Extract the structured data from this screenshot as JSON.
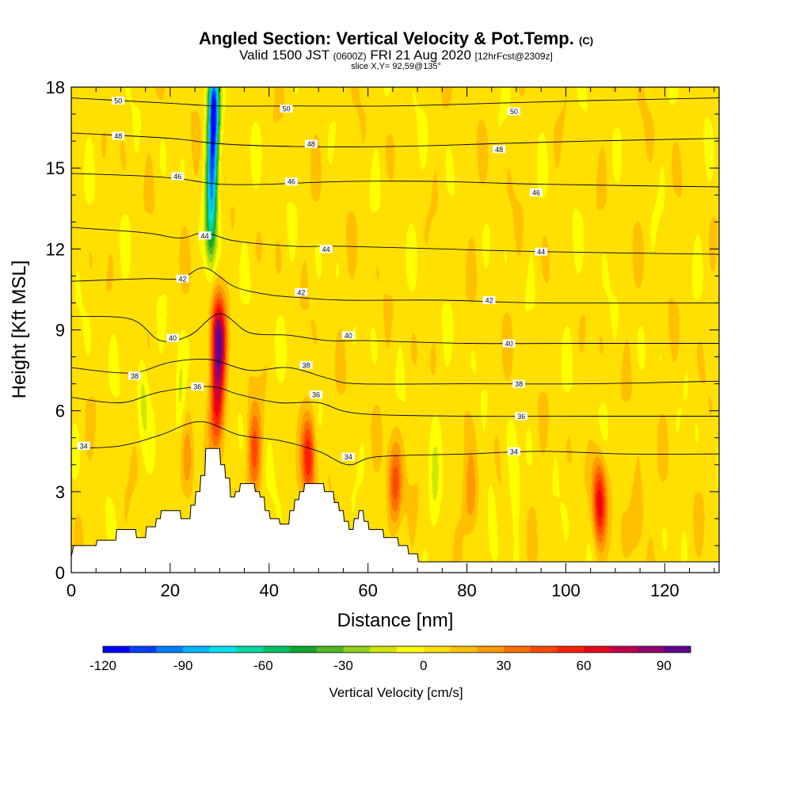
{
  "header": {
    "title_main": "Angled Section: Vertical Velocity & Pot.Temp.",
    "title_tag": "(C)",
    "subtitle_part1": "Valid 1500 JST",
    "subtitle_part2": "(0600Z)",
    "subtitle_part3": "FRI 21 Aug 2020",
    "subtitle_part4": "[12hrFcst@2309z]",
    "slice": "slice X,Y= 92,59@135°"
  },
  "chart_data": {
    "type": "heatmap",
    "xlabel": "Distance [nm]",
    "ylabel": "Height [Kft MSL]",
    "xlim": [
      0,
      131
    ],
    "ylim": [
      0,
      18
    ],
    "x_ticks": [
      0,
      20,
      40,
      60,
      80,
      100,
      120
    ],
    "y_ticks": [
      0,
      3,
      6,
      9,
      12,
      15,
      18
    ],
    "colorbar": {
      "title": "Vertical Velocity [cm/s]",
      "min": -120,
      "max": 100,
      "step": 10,
      "tick_values": [
        -120,
        -90,
        -60,
        -30,
        0,
        30,
        60,
        90
      ],
      "colors": [
        "#0000ff",
        "#0040ff",
        "#0080ff",
        "#00b4ff",
        "#00e0f0",
        "#00d8a0",
        "#00c060",
        "#10a830",
        "#50b820",
        "#90d020",
        "#d0e600",
        "#ffff00",
        "#ffe000",
        "#ffc000",
        "#ff9a00",
        "#ff7000",
        "#ff4800",
        "#ff2000",
        "#e8001a",
        "#c0004a",
        "#900070",
        "#600090"
      ]
    },
    "background_value": 5,
    "updraft_cores": [
      {
        "x": 29.8,
        "z": 8.6,
        "peak": 85
      },
      {
        "x": 29.5,
        "z": 6.2,
        "peak": 55
      },
      {
        "x": 48.0,
        "z": 4.3,
        "peak": 52
      },
      {
        "x": 65.5,
        "z": 3.2,
        "peak": 42
      },
      {
        "x": 37.0,
        "z": 4.5,
        "peak": 38
      },
      {
        "x": 80.8,
        "z": 2.8,
        "peak": 28
      },
      {
        "x": 106.8,
        "z": 2.6,
        "peak": 60
      },
      {
        "x": 114.5,
        "z": 2.4,
        "peak": 20
      },
      {
        "x": 23.5,
        "z": 4.0,
        "peak": 22
      }
    ],
    "downdraft_cores": [
      {
        "x": 28.8,
        "z": 17.2,
        "peak": -115
      },
      {
        "x": 28.5,
        "z": 15.0,
        "peak": -75
      },
      {
        "x": 28.2,
        "z": 13.0,
        "peak": -55
      },
      {
        "x": 22.0,
        "z": 6.6,
        "peak": -22
      },
      {
        "x": 14.5,
        "z": 6.5,
        "peak": -18
      },
      {
        "x": 73.5,
        "z": 3.0,
        "peak": -15
      },
      {
        "x": 85.0,
        "z": 2.5,
        "peak": -12
      },
      {
        "x": 89.5,
        "z": 3.2,
        "peak": -10
      }
    ],
    "terrain_kft": [
      [
        0,
        0.6
      ],
      [
        0.5,
        1.0
      ],
      [
        5,
        1.0
      ],
      [
        5.2,
        1.2
      ],
      [
        9,
        1.2
      ],
      [
        9.2,
        1.6
      ],
      [
        13,
        1.6
      ],
      [
        13.2,
        1.3
      ],
      [
        15,
        1.3
      ],
      [
        15.2,
        1.7
      ],
      [
        17,
        1.7
      ],
      [
        17.2,
        2.0
      ],
      [
        18,
        2.0
      ],
      [
        18.2,
        2.3
      ],
      [
        22,
        2.3
      ],
      [
        22.2,
        2.0
      ],
      [
        24,
        2.0
      ],
      [
        24.2,
        2.5
      ],
      [
        25,
        2.5
      ],
      [
        25.2,
        3.0
      ],
      [
        26,
        3.0
      ],
      [
        26.2,
        3.6
      ],
      [
        27,
        3.6
      ],
      [
        27.2,
        4.6
      ],
      [
        30,
        4.6
      ],
      [
        30.2,
        4.0
      ],
      [
        31,
        4.0
      ],
      [
        31.2,
        3.5
      ],
      [
        32,
        3.5
      ],
      [
        32.2,
        2.8
      ],
      [
        33,
        2.8
      ],
      [
        33.2,
        3.0
      ],
      [
        34,
        3.0
      ],
      [
        34.2,
        3.3
      ],
      [
        37,
        3.3
      ],
      [
        37.2,
        3.0
      ],
      [
        38,
        3.0
      ],
      [
        38.2,
        2.8
      ],
      [
        39,
        2.8
      ],
      [
        39.2,
        2.3
      ],
      [
        40,
        2.3
      ],
      [
        40.2,
        2.0
      ],
      [
        42,
        2.0
      ],
      [
        42.2,
        1.8
      ],
      [
        44,
        1.8
      ],
      [
        44.2,
        2.3
      ],
      [
        45,
        2.3
      ],
      [
        45.2,
        2.7
      ],
      [
        46,
        2.7
      ],
      [
        46.2,
        3.0
      ],
      [
        47,
        3.0
      ],
      [
        47.2,
        3.3
      ],
      [
        51,
        3.3
      ],
      [
        51.2,
        3.0
      ],
      [
        53,
        3.0
      ],
      [
        53.2,
        2.6
      ],
      [
        54,
        2.6
      ],
      [
        54.2,
        2.3
      ],
      [
        55,
        2.3
      ],
      [
        55.2,
        1.9
      ],
      [
        56,
        1.9
      ],
      [
        56.2,
        1.6
      ],
      [
        57,
        1.6
      ],
      [
        57.2,
        2.0
      ],
      [
        58,
        2.0
      ],
      [
        58.2,
        2.3
      ],
      [
        59,
        2.3
      ],
      [
        59.2,
        1.9
      ],
      [
        60,
        1.9
      ],
      [
        60.2,
        1.6
      ],
      [
        63,
        1.6
      ],
      [
        63.2,
        1.3
      ],
      [
        66,
        1.3
      ],
      [
        66.2,
        1.0
      ],
      [
        68,
        1.0
      ],
      [
        68.2,
        0.7
      ],
      [
        70,
        0.7
      ],
      [
        70.2,
        0.4
      ],
      [
        131,
        0.4
      ]
    ],
    "theta_isentropes": [
      {
        "label": "50",
        "points": [
          [
            0,
            17.6
          ],
          [
            20,
            17.4
          ],
          [
            30,
            17.3
          ],
          [
            45,
            17.3
          ],
          [
            65,
            17.3
          ],
          [
            85,
            17.4
          ],
          [
            105,
            17.5
          ],
          [
            131,
            17.6
          ]
        ]
      },
      {
        "label": "48",
        "points": [
          [
            0,
            16.3
          ],
          [
            20,
            16.1
          ],
          [
            30,
            15.9
          ],
          [
            45,
            15.8
          ],
          [
            65,
            15.8
          ],
          [
            85,
            15.9
          ],
          [
            105,
            16.0
          ],
          [
            131,
            16.1
          ]
        ]
      },
      {
        "label": "46",
        "points": [
          [
            0,
            14.8
          ],
          [
            15,
            14.7
          ],
          [
            22,
            14.6
          ],
          [
            30,
            14.4
          ],
          [
            40,
            14.4
          ],
          [
            55,
            14.5
          ],
          [
            75,
            14.5
          ],
          [
            95,
            14.4
          ],
          [
            131,
            14.3
          ]
        ]
      },
      {
        "label": "44",
        "points": [
          [
            0,
            12.8
          ],
          [
            15,
            12.6
          ],
          [
            22,
            12.4
          ],
          [
            27,
            12.6
          ],
          [
            33,
            12.3
          ],
          [
            45,
            12.1
          ],
          [
            55,
            12.1
          ],
          [
            75,
            12.0
          ],
          [
            95,
            11.9
          ],
          [
            131,
            11.8
          ]
        ]
      },
      {
        "label": "42",
        "points": [
          [
            0,
            10.8
          ],
          [
            15,
            10.9
          ],
          [
            22,
            10.9
          ],
          [
            27,
            11.3
          ],
          [
            33,
            10.6
          ],
          [
            40,
            10.3
          ],
          [
            46,
            10.2
          ],
          [
            55,
            10.1
          ],
          [
            75,
            10.1
          ],
          [
            95,
            10.0
          ],
          [
            131,
            10.0
          ]
        ]
      },
      {
        "label": "40",
        "points": [
          [
            0,
            9.5
          ],
          [
            12,
            9.4
          ],
          [
            18,
            8.6
          ],
          [
            24,
            8.8
          ],
          [
            30,
            9.6
          ],
          [
            36,
            8.9
          ],
          [
            44,
            8.8
          ],
          [
            52,
            8.6
          ],
          [
            60,
            8.6
          ],
          [
            80,
            8.5
          ],
          [
            105,
            8.5
          ],
          [
            131,
            8.5
          ]
        ]
      },
      {
        "label": "38",
        "points": [
          [
            0,
            7.6
          ],
          [
            12,
            7.4
          ],
          [
            20,
            7.8
          ],
          [
            28,
            7.9
          ],
          [
            36,
            7.5
          ],
          [
            44,
            7.6
          ],
          [
            52,
            7.2
          ],
          [
            58,
            7.0
          ],
          [
            80,
            7.0
          ],
          [
            105,
            7.0
          ],
          [
            131,
            7.1
          ]
        ]
      },
      {
        "label": "36",
        "points": [
          [
            0,
            6.5
          ],
          [
            10,
            6.3
          ],
          [
            18,
            6.7
          ],
          [
            28,
            6.9
          ],
          [
            34,
            6.6
          ],
          [
            42,
            6.3
          ],
          [
            50,
            6.3
          ],
          [
            58,
            5.9
          ],
          [
            80,
            5.8
          ],
          [
            105,
            5.8
          ],
          [
            131,
            5.8
          ]
        ]
      },
      {
        "label": "34",
        "points": [
          [
            0,
            4.6
          ],
          [
            10,
            4.7
          ],
          [
            18,
            5.1
          ],
          [
            26,
            5.6
          ],
          [
            34,
            5.1
          ],
          [
            42,
            4.9
          ],
          [
            50,
            4.5
          ],
          [
            56,
            4.0
          ],
          [
            62,
            4.3
          ],
          [
            80,
            4.4
          ],
          [
            95,
            4.5
          ],
          [
            112,
            4.4
          ],
          [
            131,
            4.4
          ]
        ]
      }
    ],
    "contour_labels": [
      {
        "text": "50",
        "x": 9.5,
        "z": 17.5
      },
      {
        "text": "50",
        "x": 43.5,
        "z": 17.2
      },
      {
        "text": "50",
        "x": 89.5,
        "z": 17.1
      },
      {
        "text": "48",
        "x": 9.5,
        "z": 16.2
      },
      {
        "text": "48",
        "x": 48.5,
        "z": 15.9
      },
      {
        "text": "48",
        "x": 86.5,
        "z": 15.7
      },
      {
        "text": "46",
        "x": 21.5,
        "z": 14.7
      },
      {
        "text": "46",
        "x": 44.5,
        "z": 14.5
      },
      {
        "text": "46",
        "x": 94.0,
        "z": 14.1
      },
      {
        "text": "44",
        "x": 27.0,
        "z": 12.5
      },
      {
        "text": "44",
        "x": 51.5,
        "z": 12.0
      },
      {
        "text": "44",
        "x": 95.0,
        "z": 11.9
      },
      {
        "text": "42",
        "x": 22.5,
        "z": 10.9
      },
      {
        "text": "42",
        "x": 46.5,
        "z": 10.4
      },
      {
        "text": "42",
        "x": 84.5,
        "z": 10.1
      },
      {
        "text": "40",
        "x": 20.5,
        "z": 8.7
      },
      {
        "text": "40",
        "x": 56.0,
        "z": 8.8
      },
      {
        "text": "40",
        "x": 88.5,
        "z": 8.5
      },
      {
        "text": "38",
        "x": 12.8,
        "z": 7.3
      },
      {
        "text": "38",
        "x": 47.5,
        "z": 7.7
      },
      {
        "text": "38",
        "x": 90.5,
        "z": 7.0
      },
      {
        "text": "36",
        "x": 25.5,
        "z": 6.9
      },
      {
        "text": "36",
        "x": 49.5,
        "z": 6.6
      },
      {
        "text": "36",
        "x": 91.0,
        "z": 5.8
      },
      {
        "text": "34",
        "x": 2.5,
        "z": 4.7
      },
      {
        "text": "34",
        "x": 56.0,
        "z": 4.3
      },
      {
        "text": "34",
        "x": 89.5,
        "z": 4.5
      }
    ]
  }
}
